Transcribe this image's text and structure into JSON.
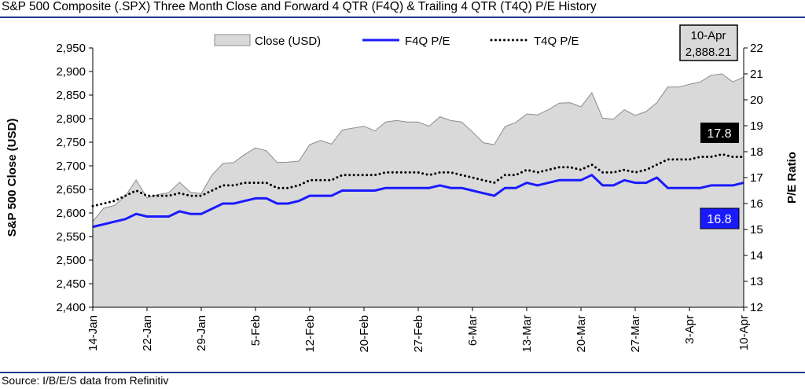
{
  "title": "S&P 500 Composite (.SPX) Three Month Close and Forward 4 QTR (F4Q) & Trailing 4 QTR (T4Q) P/E History",
  "source": "Source: I/B/E/S data from Refinitiv",
  "colors": {
    "area": "#d9d9d9",
    "area_edge": "#8c8c8c",
    "f4q": "#1a1aff",
    "t4q": "#000000",
    "rule": "#1f3b8f"
  },
  "chart_data": {
    "type": "area",
    "x_tick_labels": [
      "14-Jan",
      "22-Jan",
      "29-Jan",
      "5-Feb",
      "12-Feb",
      "20-Feb",
      "27-Feb",
      "6-Mar",
      "13-Mar",
      "20-Mar",
      "27-Mar",
      "3-Apr",
      "10-Apr"
    ],
    "ylabel": "S&P 500 Close (USD)",
    "y2label": "P/E Ratio",
    "ylim": [
      2400,
      2950
    ],
    "y_ticks": [
      "2,400",
      "2,450",
      "2,500",
      "2,550",
      "2,600",
      "2,650",
      "2,700",
      "2,750",
      "2,800",
      "2,850",
      "2,900",
      "2,950"
    ],
    "y2lim": [
      12,
      22
    ],
    "y2_ticks": [
      "12",
      "13",
      "14",
      "15",
      "16",
      "17",
      "18",
      "19",
      "20",
      "21",
      "22"
    ],
    "legend": {
      "placement": "top",
      "labels": [
        "Close (USD)",
        "F4Q P/E",
        "T4Q P/E"
      ]
    },
    "series": [
      {
        "name": "Close (USD)",
        "axis": "left",
        "style": "area",
        "values": [
          2582,
          2610,
          2616,
          2636,
          2670,
          2632,
          2639,
          2643,
          2665,
          2644,
          2641,
          2681,
          2705,
          2707,
          2724,
          2738,
          2732,
          2707,
          2708,
          2710,
          2745,
          2754,
          2746,
          2776,
          2780,
          2784,
          2774,
          2793,
          2796,
          2793,
          2793,
          2784,
          2804,
          2796,
          2793,
          2772,
          2749,
          2745,
          2783,
          2792,
          2810,
          2808,
          2819,
          2833,
          2834,
          2825,
          2855,
          2801,
          2799,
          2819,
          2807,
          2815,
          2834,
          2867,
          2867,
          2873,
          2878,
          2892,
          2895,
          2878,
          2888.21
        ]
      },
      {
        "name": "F4Q P/E",
        "axis": "right",
        "style": "line",
        "values": [
          15.1,
          15.2,
          15.3,
          15.4,
          15.6,
          15.5,
          15.5,
          15.5,
          15.7,
          15.6,
          15.6,
          15.8,
          16.0,
          16.0,
          16.1,
          16.2,
          16.2,
          16.0,
          16.0,
          16.1,
          16.3,
          16.3,
          16.3,
          16.5,
          16.5,
          16.5,
          16.5,
          16.6,
          16.6,
          16.6,
          16.6,
          16.6,
          16.7,
          16.6,
          16.6,
          16.5,
          16.4,
          16.3,
          16.6,
          16.6,
          16.8,
          16.7,
          16.8,
          16.9,
          16.9,
          16.9,
          17.1,
          16.7,
          16.7,
          16.9,
          16.8,
          16.8,
          17.0,
          16.6,
          16.6,
          16.6,
          16.6,
          16.7,
          16.7,
          16.7,
          16.8
        ]
      },
      {
        "name": "T4Q P/E",
        "axis": "right",
        "style": "dotted",
        "values": [
          15.9,
          16.0,
          16.1,
          16.3,
          16.5,
          16.3,
          16.3,
          16.3,
          16.4,
          16.3,
          16.3,
          16.5,
          16.7,
          16.7,
          16.8,
          16.8,
          16.8,
          16.6,
          16.6,
          16.7,
          16.9,
          16.9,
          16.9,
          17.1,
          17.1,
          17.1,
          17.1,
          17.2,
          17.2,
          17.2,
          17.2,
          17.1,
          17.2,
          17.2,
          17.1,
          17.0,
          16.9,
          16.8,
          17.1,
          17.1,
          17.3,
          17.2,
          17.3,
          17.4,
          17.4,
          17.3,
          17.5,
          17.2,
          17.2,
          17.3,
          17.2,
          17.3,
          17.5,
          17.7,
          17.7,
          17.7,
          17.8,
          17.8,
          17.9,
          17.8,
          17.8
        ]
      }
    ],
    "annotations": [
      {
        "label_top": "10-Apr",
        "label_bottom": "2,888.21"
      },
      {
        "label": "17.8"
      },
      {
        "label": "16.8"
      }
    ]
  }
}
